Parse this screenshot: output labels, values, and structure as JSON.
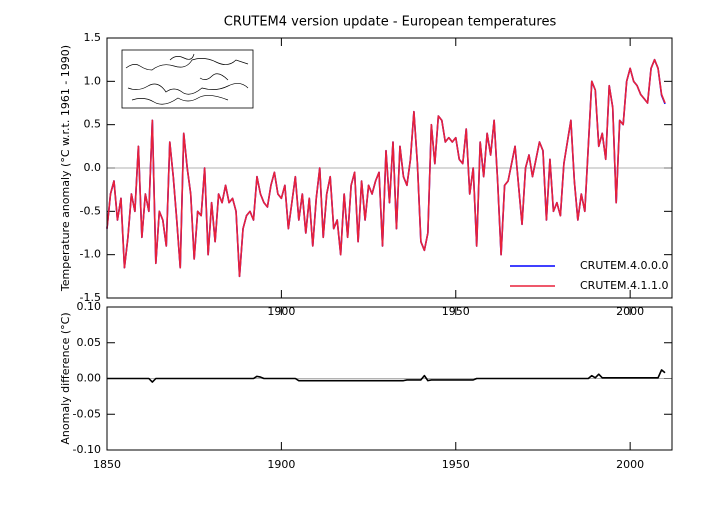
{
  "chart_data": [
    {
      "type": "line",
      "title": "CRUTEM4 version update - European temperatures",
      "y_label": "Temperature anomaly (°C w.r.t. 1961 - 1990)",
      "xlim": [
        1850,
        2012
      ],
      "xticks": [
        1900,
        1950,
        2000
      ],
      "ylim": [
        -1.5,
        1.5
      ],
      "yticks": [
        -1.5,
        {
          "value": -1,
          "label": "-1.0"
        },
        -0.5,
        {
          "value": 0,
          "label": "0.0"
        },
        0.5,
        {
          "value": 1,
          "label": "1.0"
        },
        1.5
      ],
      "legend": "lower right",
      "x": [
        1850,
        1851,
        1852,
        1853,
        1854,
        1855,
        1856,
        1857,
        1858,
        1859,
        1860,
        1861,
        1862,
        1863,
        1864,
        1865,
        1866,
        1867,
        1868,
        1869,
        1870,
        1871,
        1872,
        1873,
        1874,
        1875,
        1876,
        1877,
        1878,
        1879,
        1880,
        1881,
        1882,
        1883,
        1884,
        1885,
        1886,
        1887,
        1888,
        1889,
        1890,
        1891,
        1892,
        1893,
        1894,
        1895,
        1896,
        1897,
        1898,
        1899,
        1900,
        1901,
        1902,
        1903,
        1904,
        1905,
        1906,
        1907,
        1908,
        1909,
        1910,
        1911,
        1912,
        1913,
        1914,
        1915,
        1916,
        1917,
        1918,
        1919,
        1920,
        1921,
        1922,
        1923,
        1924,
        1925,
        1926,
        1927,
        1928,
        1929,
        1930,
        1931,
        1932,
        1933,
        1934,
        1935,
        1936,
        1937,
        1938,
        1939,
        1940,
        1941,
        1942,
        1943,
        1944,
        1945,
        1946,
        1947,
        1948,
        1949,
        1950,
        1951,
        1952,
        1953,
        1954,
        1955,
        1956,
        1957,
        1958,
        1959,
        1960,
        1961,
        1962,
        1963,
        1964,
        1965,
        1966,
        1967,
        1968,
        1969,
        1970,
        1971,
        1972,
        1973,
        1974,
        1975,
        1976,
        1977,
        1978,
        1979,
        1980,
        1981,
        1982,
        1983,
        1984,
        1985,
        1986,
        1987,
        1988,
        1989,
        1990,
        1991,
        1992,
        1993,
        1994,
        1995,
        1996,
        1997,
        1998,
        1999,
        2000,
        2001,
        2002,
        2003,
        2004,
        2005,
        2006,
        2007,
        2008,
        2009,
        2010
      ],
      "series": [
        {
          "name": "CRUTEM.4.0.0.0",
          "color": "#0000ff",
          "values": [
            -0.7,
            -0.3,
            -0.15,
            -0.6,
            -0.35,
            -1.15,
            -0.8,
            -0.3,
            -0.5,
            0.25,
            -0.8,
            -0.3,
            -0.5,
            0.55,
            -1.1,
            -0.5,
            -0.6,
            -0.9,
            0.3,
            -0.1,
            -0.6,
            -1.15,
            0.4,
            0.0,
            -0.3,
            -1.05,
            -0.5,
            -0.55,
            0.0,
            -1.0,
            -0.4,
            -0.85,
            -0.3,
            -0.4,
            -0.2,
            -0.4,
            -0.35,
            -0.5,
            -1.25,
            -0.7,
            -0.55,
            -0.5,
            -0.6,
            -0.1,
            -0.3,
            -0.4,
            -0.45,
            -0.2,
            -0.05,
            -0.3,
            -0.35,
            -0.2,
            -0.7,
            -0.4,
            -0.1,
            -0.6,
            -0.3,
            -0.75,
            -0.35,
            -0.9,
            -0.35,
            0.0,
            -0.8,
            -0.3,
            -0.1,
            -0.7,
            -0.6,
            -1.0,
            -0.3,
            -0.8,
            -0.2,
            -0.05,
            -0.85,
            -0.15,
            -0.6,
            -0.2,
            -0.3,
            -0.15,
            -0.05,
            -0.9,
            0.2,
            -0.4,
            0.3,
            -0.7,
            0.25,
            -0.1,
            -0.2,
            0.1,
            0.65,
            0.05,
            -0.85,
            -0.95,
            -0.75,
            0.5,
            0.05,
            0.6,
            0.55,
            0.3,
            0.35,
            0.3,
            0.35,
            0.1,
            0.05,
            0.45,
            -0.3,
            0.0,
            -0.9,
            0.3,
            -0.1,
            0.4,
            0.15,
            0.55,
            -0.15,
            -1.0,
            -0.2,
            -0.15,
            0.05,
            0.25,
            -0.2,
            -0.65,
            0.0,
            0.15,
            -0.1,
            0.1,
            0.3,
            0.2,
            -0.6,
            0.1,
            -0.5,
            -0.4,
            -0.55,
            0.05,
            0.3,
            0.55,
            -0.15,
            -0.6,
            -0.3,
            -0.5,
            0.25,
            1.0,
            0.9,
            0.25,
            0.4,
            0.1,
            0.95,
            0.7,
            -0.4,
            0.55,
            0.5,
            1.0,
            1.15,
            1.0,
            0.95,
            0.85,
            0.8,
            0.75,
            1.15,
            1.25,
            1.15,
            0.84,
            0.74
          ]
        },
        {
          "name": "CRUTEM.4.1.1.0",
          "color": "#e8213a",
          "values": [
            -0.7,
            -0.3,
            -0.15,
            -0.6,
            -0.35,
            -1.15,
            -0.8,
            -0.3,
            -0.5,
            0.25,
            -0.8,
            -0.3,
            -0.5,
            0.55,
            -1.1,
            -0.5,
            -0.6,
            -0.9,
            0.3,
            -0.1,
            -0.6,
            -1.15,
            0.4,
            0.0,
            -0.3,
            -1.05,
            -0.5,
            -0.55,
            0.0,
            -1.0,
            -0.4,
            -0.85,
            -0.3,
            -0.4,
            -0.2,
            -0.4,
            -0.35,
            -0.5,
            -1.25,
            -0.7,
            -0.55,
            -0.5,
            -0.6,
            -0.1,
            -0.3,
            -0.4,
            -0.45,
            -0.2,
            -0.05,
            -0.3,
            -0.35,
            -0.2,
            -0.7,
            -0.4,
            -0.1,
            -0.6,
            -0.3,
            -0.75,
            -0.35,
            -0.9,
            -0.35,
            0.0,
            -0.8,
            -0.3,
            -0.1,
            -0.7,
            -0.6,
            -1.0,
            -0.3,
            -0.8,
            -0.2,
            -0.05,
            -0.85,
            -0.15,
            -0.6,
            -0.2,
            -0.3,
            -0.15,
            -0.05,
            -0.9,
            0.2,
            -0.4,
            0.3,
            -0.7,
            0.25,
            -0.1,
            -0.2,
            0.1,
            0.65,
            0.05,
            -0.85,
            -0.95,
            -0.75,
            0.5,
            0.05,
            0.6,
            0.55,
            0.3,
            0.35,
            0.3,
            0.35,
            0.1,
            0.05,
            0.45,
            -0.3,
            0.0,
            -0.9,
            0.3,
            -0.1,
            0.4,
            0.15,
            0.55,
            -0.15,
            -1.0,
            -0.2,
            -0.15,
            0.05,
            0.25,
            -0.2,
            -0.65,
            0.0,
            0.15,
            -0.1,
            0.1,
            0.3,
            0.2,
            -0.6,
            0.1,
            -0.5,
            -0.4,
            -0.55,
            0.05,
            0.3,
            0.55,
            -0.15,
            -0.6,
            -0.3,
            -0.5,
            0.25,
            1.0,
            0.9,
            0.25,
            0.4,
            0.1,
            0.95,
            0.7,
            -0.4,
            0.55,
            0.5,
            1.0,
            1.15,
            1.0,
            0.95,
            0.85,
            0.8,
            0.75,
            1.15,
            1.25,
            1.15,
            0.85,
            0.75
          ]
        }
      ]
    },
    {
      "type": "line",
      "y_label": "Anomaly difference (°C)",
      "xlim": [
        1850,
        2012
      ],
      "xticks": [
        1850,
        1900,
        1950,
        2000
      ],
      "ylim": [
        -0.1,
        0.1
      ],
      "yticks": [
        {
          "value": -0.1,
          "label": "-0.10"
        },
        -0.05,
        {
          "value": 0,
          "label": "0.00"
        },
        0.05,
        {
          "value": 0.1,
          "label": "0.10"
        }
      ],
      "x": [
        1850,
        1851,
        1852,
        1853,
        1854,
        1855,
        1856,
        1857,
        1858,
        1859,
        1860,
        1861,
        1862,
        1863,
        1864,
        1865,
        1866,
        1867,
        1868,
        1869,
        1870,
        1871,
        1872,
        1873,
        1874,
        1875,
        1876,
        1877,
        1878,
        1879,
        1880,
        1881,
        1882,
        1883,
        1884,
        1885,
        1886,
        1887,
        1888,
        1889,
        1890,
        1891,
        1892,
        1893,
        1894,
        1895,
        1896,
        1897,
        1898,
        1899,
        1900,
        1901,
        1902,
        1903,
        1904,
        1905,
        1906,
        1907,
        1908,
        1909,
        1910,
        1911,
        1912,
        1913,
        1914,
        1915,
        1916,
        1917,
        1918,
        1919,
        1920,
        1921,
        1922,
        1923,
        1924,
        1925,
        1926,
        1927,
        1928,
        1929,
        1930,
        1931,
        1932,
        1933,
        1934,
        1935,
        1936,
        1937,
        1938,
        1939,
        1940,
        1941,
        1942,
        1943,
        1944,
        1945,
        1946,
        1947,
        1948,
        1949,
        1950,
        1951,
        1952,
        1953,
        1954,
        1955,
        1956,
        1957,
        1958,
        1959,
        1960,
        1961,
        1962,
        1963,
        1964,
        1965,
        1966,
        1967,
        1968,
        1969,
        1970,
        1971,
        1972,
        1973,
        1974,
        1975,
        1976,
        1977,
        1978,
        1979,
        1980,
        1981,
        1982,
        1983,
        1984,
        1985,
        1986,
        1987,
        1988,
        1989,
        1990,
        1991,
        1992,
        1993,
        1994,
        1995,
        1996,
        1997,
        1998,
        1999,
        2000,
        2001,
        2002,
        2003,
        2004,
        2005,
        2006,
        2007,
        2008,
        2009,
        2010
      ],
      "series": [
        {
          "color": "#000000",
          "values": [
            0,
            0,
            0,
            0,
            0,
            0,
            0,
            0,
            0,
            0,
            0,
            0,
            0,
            -0.005,
            0,
            0,
            0,
            0,
            0,
            0,
            0,
            0,
            0,
            0,
            0,
            0,
            0,
            0,
            0,
            0,
            0,
            0,
            0,
            0,
            0,
            0,
            0,
            0,
            0,
            0,
            0,
            0,
            0,
            0.003,
            0.002,
            0,
            0,
            0,
            0,
            0,
            0,
            0,
            0,
            0,
            0,
            -0.003,
            -0.003,
            -0.003,
            -0.003,
            -0.003,
            -0.003,
            -0.003,
            -0.003,
            -0.003,
            -0.003,
            -0.003,
            -0.003,
            -0.003,
            -0.003,
            -0.003,
            -0.003,
            -0.003,
            -0.003,
            -0.003,
            -0.003,
            -0.003,
            -0.003,
            -0.003,
            -0.003,
            -0.003,
            -0.003,
            -0.003,
            -0.003,
            -0.003,
            -0.003,
            -0.003,
            -0.002,
            -0.002,
            -0.002,
            -0.002,
            -0.002,
            0.004,
            -0.003,
            -0.002,
            -0.002,
            -0.002,
            -0.002,
            -0.002,
            -0.002,
            -0.002,
            -0.002,
            -0.002,
            -0.002,
            -0.002,
            -0.002,
            -0.002,
            0,
            0,
            0,
            0,
            0,
            0,
            0,
            0,
            0,
            0,
            0,
            0,
            0,
            0,
            0,
            0,
            0,
            0,
            0,
            0,
            0,
            0,
            0,
            0,
            0,
            0,
            0,
            0,
            0,
            0,
            0,
            0,
            0,
            0.004,
            0.001,
            0.006,
            0.001,
            0.001,
            0.001,
            0.001,
            0.001,
            0.001,
            0.001,
            0.001,
            0.001,
            0.001,
            0.001,
            0.001,
            0.001,
            0.001,
            0.001,
            0.001,
            0.001,
            0.012,
            0.008
          ]
        }
      ]
    }
  ]
}
